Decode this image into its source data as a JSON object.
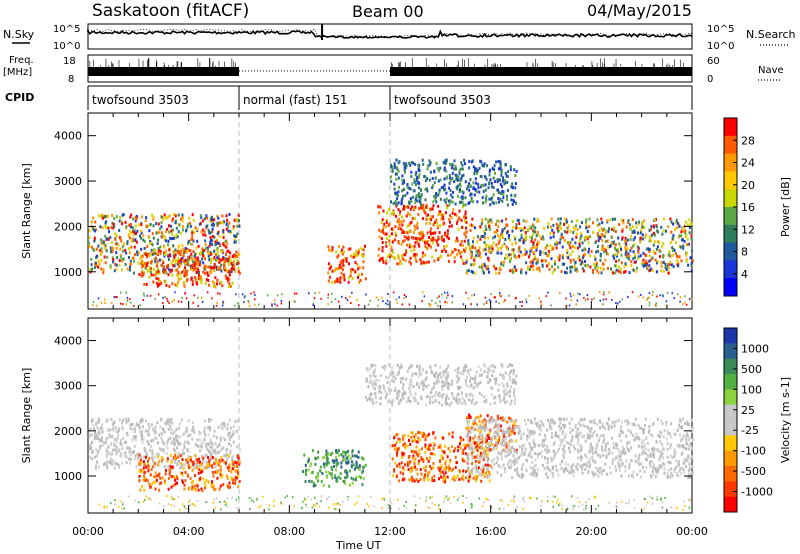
{
  "header": {
    "station": "Saskatoon (fitACF)",
    "beam": "Beam 00",
    "date": "04/May/2015"
  },
  "side_labels": {
    "nsky": "N.Sky",
    "nsearch": "N.Search",
    "freq_line1": "Freq.",
    "freq_line2": "[MHz]",
    "nave": "Nave",
    "cpid": "CPID"
  },
  "noise_axis": {
    "left_top": "10^5",
    "left_bottom": "10^0",
    "right_top": "10^5",
    "right_bottom": "10^0"
  },
  "freq_axis": {
    "left_top": "18",
    "left_bottom": "8",
    "right_top": "60",
    "right_bottom": "0"
  },
  "cpid_segments": [
    {
      "label": "twofsound 3503",
      "start_h": 0,
      "end_h": 6
    },
    {
      "label": "normal (fast) 151",
      "start_h": 6,
      "end_h": 12
    },
    {
      "label": "twofsound 3503",
      "start_h": 12,
      "end_h": 24
    }
  ],
  "power_colorbar": {
    "label": "Power [dB]",
    "ticks": [
      "28",
      "24",
      "20",
      "16",
      "12",
      "8",
      "4"
    ],
    "colors": [
      "#ff0000",
      "#ff5a00",
      "#ff9a00",
      "#ffc800",
      "#c8d800",
      "#5aa845",
      "#2e7d5c",
      "#1e5aa0",
      "#1a36d8",
      "#0000ff"
    ]
  },
  "velocity_colorbar": {
    "label": "Velocity [m s-1]",
    "ticks": [
      "1000",
      "500",
      "100",
      "25",
      "-25",
      "-100",
      "-500",
      "-1000"
    ],
    "colors": [
      "#1a36a8",
      "#2a6090",
      "#3a8a5a",
      "#50b040",
      "#8cd23c",
      "#c8c8c8",
      "#c8c8c8",
      "#ffc800",
      "#ff9a00",
      "#ff6a00",
      "#ff3a00",
      "#ff0000"
    ]
  },
  "chart_data": [
    {
      "type": "heatmap",
      "title": "Power",
      "xlabel": "Time UT",
      "ylabel": "Slant Range [km]",
      "xlim_hours": [
        0,
        24
      ],
      "ylim": [
        180,
        4500
      ],
      "x_ticks": [
        "00:00",
        "04:00",
        "08:00",
        "12:00",
        "16:00",
        "20:00",
        "00:00"
      ],
      "y_ticks": [
        1000,
        2000,
        3000,
        4000
      ],
      "scatter_regions": [
        {
          "t0": 0,
          "t1": 6,
          "r0": 1000,
          "r1": 2300,
          "level": "mixed"
        },
        {
          "t0": 2,
          "t1": 6,
          "r0": 700,
          "r1": 1500,
          "level": "strong"
        },
        {
          "t0": 9.5,
          "t1": 11,
          "r0": 800,
          "r1": 1600,
          "level": "strong"
        },
        {
          "t0": 11.5,
          "t1": 15,
          "r0": 1200,
          "r1": 2500,
          "level": "strong"
        },
        {
          "t0": 15,
          "t1": 24,
          "r0": 1000,
          "r1": 2200,
          "level": "mixed"
        },
        {
          "t0": 12,
          "t1": 17,
          "r0": 2500,
          "r1": 3500,
          "level": "weak"
        }
      ]
    },
    {
      "type": "heatmap",
      "title": "Velocity",
      "xlabel": "Time UT",
      "ylabel": "Slant Range [km]",
      "xlim_hours": [
        0,
        24
      ],
      "ylim": [
        180,
        4500
      ],
      "x_ticks": [
        "00:00",
        "04:00",
        "08:00",
        "12:00",
        "16:00",
        "20:00",
        "00:00"
      ],
      "y_ticks": [
        1000,
        2000,
        3000,
        4000
      ],
      "scatter_regions": [
        {
          "t0": 0,
          "t1": 6,
          "r0": 1200,
          "r1": 2300,
          "level": "gray"
        },
        {
          "t0": 2,
          "t1": 6,
          "r0": 700,
          "r1": 1500,
          "level": "negative"
        },
        {
          "t0": 8.5,
          "t1": 11,
          "r0": 800,
          "r1": 1600,
          "level": "positive"
        },
        {
          "t0": 12,
          "t1": 16,
          "r0": 900,
          "r1": 2000,
          "level": "negative"
        },
        {
          "t0": 15,
          "t1": 17,
          "r0": 1600,
          "r1": 2400,
          "level": "negative"
        },
        {
          "t0": 15,
          "t1": 24,
          "r0": 1000,
          "r1": 2300,
          "level": "gray"
        },
        {
          "t0": 11,
          "t1": 17,
          "r0": 2600,
          "r1": 3500,
          "level": "gray"
        }
      ]
    }
  ]
}
